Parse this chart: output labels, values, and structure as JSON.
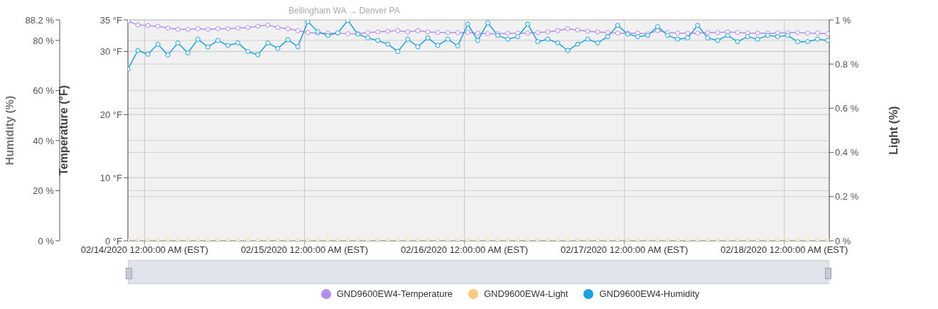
{
  "chart_data": {
    "type": "line",
    "title": "Bellingham WA → Denver PA",
    "ylabel": "Temperature (°F)",
    "y2label": "Light (%)",
    "y3label": "Humidity (%)",
    "x": [
      "2020-02-13T21:30",
      "2020-02-13T23:00",
      "2020-02-14T00:30",
      "2020-02-14T02:00",
      "2020-02-14T03:30",
      "2020-02-14T05:00",
      "2020-02-14T06:30",
      "2020-02-14T08:00",
      "2020-02-14T09:30",
      "2020-02-14T11:00",
      "2020-02-14T12:30",
      "2020-02-14T14:00",
      "2020-02-14T15:30",
      "2020-02-14T17:00",
      "2020-02-14T18:30",
      "2020-02-14T20:00",
      "2020-02-14T21:30",
      "2020-02-14T23:00",
      "2020-02-15T00:30",
      "2020-02-15T02:00",
      "2020-02-15T03:30",
      "2020-02-15T05:00",
      "2020-02-15T06:30",
      "2020-02-15T08:00",
      "2020-02-15T09:30",
      "2020-02-15T11:00",
      "2020-02-15T12:30",
      "2020-02-15T14:00",
      "2020-02-15T15:30",
      "2020-02-15T17:00",
      "2020-02-15T18:30",
      "2020-02-15T20:00",
      "2020-02-15T21:30",
      "2020-02-15T23:00",
      "2020-02-16T00:30",
      "2020-02-16T02:00",
      "2020-02-16T03:30",
      "2020-02-16T05:00",
      "2020-02-16T06:30",
      "2020-02-16T08:00",
      "2020-02-16T09:30",
      "2020-02-16T11:00",
      "2020-02-16T12:30",
      "2020-02-16T14:00",
      "2020-02-16T15:30",
      "2020-02-16T17:00",
      "2020-02-16T18:30",
      "2020-02-16T20:00",
      "2020-02-16T21:30",
      "2020-02-16T23:00",
      "2020-02-17T00:30",
      "2020-02-17T02:00",
      "2020-02-17T03:30",
      "2020-02-17T05:00",
      "2020-02-17T06:30",
      "2020-02-17T08:00",
      "2020-02-17T09:30",
      "2020-02-17T11:00",
      "2020-02-17T12:30",
      "2020-02-17T14:00",
      "2020-02-17T15:30",
      "2020-02-17T17:00",
      "2020-02-17T18:30",
      "2020-02-17T20:00",
      "2020-02-17T21:30",
      "2020-02-17T23:00",
      "2020-02-18T00:30",
      "2020-02-18T02:00",
      "2020-02-18T03:30",
      "2020-02-18T05:00",
      "2020-02-18T06:30"
    ],
    "series": [
      {
        "name": "GND9600EW4-Temperature",
        "color": "#b48cf2",
        "axis": "y",
        "values": [
          34.8,
          34.2,
          34.1,
          34.0,
          33.7,
          33.5,
          33.5,
          33.6,
          33.5,
          33.6,
          33.6,
          33.7,
          33.8,
          34.0,
          34.2,
          33.8,
          33.6,
          33.3,
          33.0,
          32.9,
          32.9,
          32.9,
          32.8,
          32.8,
          33.0,
          33.1,
          33.2,
          33.3,
          33.1,
          33.3,
          33.1,
          33.0,
          33.0,
          33.0,
          33.0,
          32.9,
          32.8,
          32.8,
          32.9,
          32.9,
          32.9,
          33.0,
          33.1,
          33.3,
          33.6,
          33.4,
          33.2,
          33.1,
          33.0,
          32.9,
          32.9,
          32.9,
          32.8,
          33.3,
          33.0,
          32.9,
          32.9,
          32.9,
          33.0,
          33.0,
          33.1,
          33.0,
          32.9,
          32.9,
          32.9,
          32.9,
          33.0,
          33.0,
          32.9,
          32.9,
          32.8
        ]
      },
      {
        "name": "GND9600EW4-Light",
        "color": "#fbc87e",
        "axis": "y2",
        "values": [
          0,
          0,
          0,
          0,
          0,
          0,
          0,
          0,
          0,
          0,
          0,
          0,
          0,
          0,
          0,
          0,
          0,
          0,
          0,
          0,
          0,
          0,
          0,
          0,
          0,
          0,
          0,
          0,
          0,
          0,
          0,
          0,
          0,
          0,
          0,
          0,
          0,
          0,
          0,
          0,
          0,
          0,
          0,
          0,
          0,
          0,
          0,
          0,
          0,
          0,
          0,
          0,
          0,
          0,
          0,
          0,
          0,
          0,
          0,
          0,
          0,
          0,
          0,
          0,
          0,
          0,
          0,
          0,
          0,
          0,
          0
        ]
      },
      {
        "name": "GND9600EW4-Humidity",
        "color": "#17a2e6",
        "axis": "y3",
        "values": [
          68.5,
          76.0,
          74.5,
          78.5,
          74.2,
          79.0,
          75.0,
          80.5,
          77.4,
          80.0,
          78.0,
          79.0,
          75.6,
          74.3,
          79.0,
          76.8,
          80.3,
          77.5,
          87.5,
          83.5,
          82.0,
          83.0,
          88.0,
          82.5,
          81.0,
          80.0,
          78.5,
          75.6,
          80.5,
          77.5,
          81.0,
          78.0,
          80.5,
          77.8,
          86.5,
          80.0,
          87.0,
          82.0,
          80.5,
          81.5,
          86.5,
          79.5,
          80.5,
          79.0,
          76.0,
          78.5,
          80.5,
          79.0,
          81.5,
          86.0,
          82.5,
          81.5,
          82.0,
          85.5,
          82.0,
          80.5,
          81.0,
          86.0,
          81.0,
          80.0,
          82.0,
          79.5,
          81.5,
          80.5,
          82.0,
          81.5,
          82.0,
          79.5,
          79.5,
          80.5,
          80.0
        ]
      }
    ],
    "xlim": [
      "2020-02-13T21:30",
      "2020-02-18T06:45"
    ],
    "xticks": [
      {
        "value": "2020-02-14T00:00",
        "label": "02/14/2020 12:00:00 AM (EST)"
      },
      {
        "value": "2020-02-15T00:00",
        "label": "02/15/2020 12:00:00 AM (EST)"
      },
      {
        "value": "2020-02-16T00:00",
        "label": "02/16/2020 12:00:00 AM (EST)"
      },
      {
        "value": "2020-02-17T00:00",
        "label": "02/17/2020 12:00:00 AM (EST)"
      },
      {
        "value": "2020-02-18T00:00",
        "label": "02/18/2020 12:00:00 AM (EST)"
      }
    ],
    "ylim": [
      0,
      35
    ],
    "yticks": [
      {
        "value": 0,
        "label": "0 °F"
      },
      {
        "value": 10,
        "label": "10 °F"
      },
      {
        "value": 20,
        "label": "20 °F"
      },
      {
        "value": 30,
        "label": "30 °F"
      },
      {
        "value": 35,
        "label": "35 °F"
      }
    ],
    "y2lim": [
      0,
      1
    ],
    "y2ticks": [
      {
        "value": 0,
        "label": "0 %"
      },
      {
        "value": 0.2,
        "label": "0.2 %"
      },
      {
        "value": 0.4,
        "label": "0.4 %"
      },
      {
        "value": 0.6,
        "label": "0.6 %"
      },
      {
        "value": 0.8,
        "label": "0.8 %"
      },
      {
        "value": 1,
        "label": "1 %"
      }
    ],
    "y3lim": [
      0,
      88.2
    ],
    "y3ticks": [
      {
        "value": 0,
        "label": "0 %"
      },
      {
        "value": 20,
        "label": "20 %"
      },
      {
        "value": 40,
        "label": "40 %"
      },
      {
        "value": 60,
        "label": "60 %"
      },
      {
        "value": 80,
        "label": "80 %"
      },
      {
        "value": 88.2,
        "label": "88.2 %"
      }
    ],
    "grid": true,
    "legend": "bottom",
    "marker": "circle",
    "line_style": "solid"
  }
}
